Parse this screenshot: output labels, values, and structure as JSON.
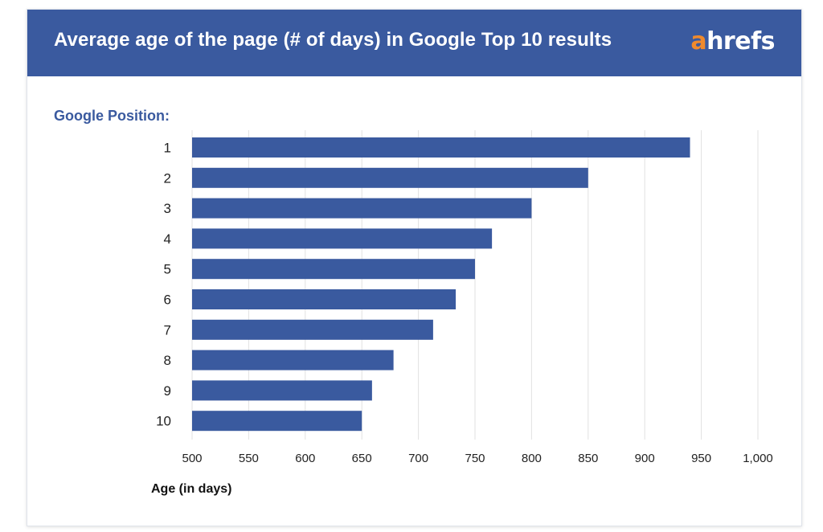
{
  "header": {
    "title": "Average age of the page (# of days) in Google Top 10 results",
    "logo_accent": "a",
    "logo_rest": "hrefs"
  },
  "colors": {
    "header_bg": "#3a5a9f",
    "bar": "#3a5a9f",
    "logo_accent": "#f08a2c",
    "grid": "#e2e2e2"
  },
  "chart_data": {
    "type": "bar",
    "orientation": "horizontal",
    "title": "Average age of the page (# of days) in Google Top 10 results",
    "ylabel": "Google Position:",
    "xlabel": "Age (in days)",
    "categories": [
      "1",
      "2",
      "3",
      "4",
      "5",
      "6",
      "7",
      "8",
      "9",
      "10"
    ],
    "values": [
      940,
      850,
      800,
      765,
      750,
      733,
      713,
      678,
      659,
      650
    ],
    "xlim": [
      500,
      1000
    ],
    "xticks": [
      500,
      550,
      600,
      650,
      700,
      750,
      800,
      850,
      900,
      950,
      1000
    ],
    "xtick_labels": [
      "500",
      "550",
      "600",
      "650",
      "700",
      "750",
      "800",
      "850",
      "900",
      "950",
      "1,000"
    ],
    "grid": "vertical",
    "legend": "none"
  }
}
